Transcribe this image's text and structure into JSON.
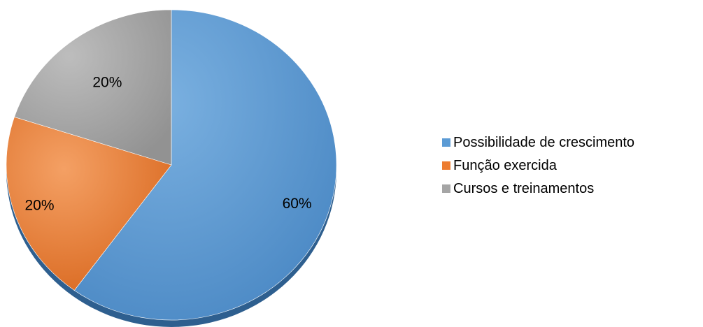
{
  "chart_data": {
    "type": "pie",
    "title": "",
    "categories": [
      "Possibilidade de crescimento",
      "Função exercida",
      "Cursos e treinamentos"
    ],
    "values": [
      60,
      20,
      20
    ],
    "data_labels": [
      "60%",
      "20%",
      "20%"
    ],
    "colors": [
      "#5B9BD5",
      "#ED7D31",
      "#A5A5A5"
    ],
    "legend_position": "right",
    "start_angle": "12 o'clock",
    "direction": "clockwise"
  }
}
